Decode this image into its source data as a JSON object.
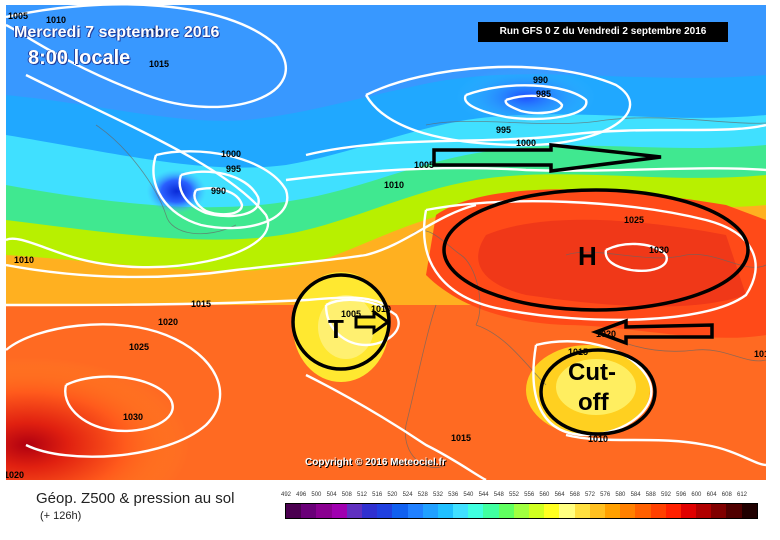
{
  "header": {
    "date_line": "Mercredi 7 septembre 2016",
    "time_line": "8:00 locale",
    "run_info": "Run GFS 0 Z du Vendredi 2 septembre 2016",
    "copyright": "Copyright © 2016 Meteociel.fr"
  },
  "legend": {
    "title": "Géop. Z500 & pression au sol",
    "subtitle": "(+ 126h)",
    "scale_values": [
      "492",
      "496",
      "500",
      "504",
      "508",
      "512",
      "516",
      "520",
      "524",
      "528",
      "532",
      "536",
      "540",
      "544",
      "548",
      "552",
      "556",
      "560",
      "564",
      "568",
      "572",
      "576",
      "580",
      "584",
      "588",
      "592",
      "596",
      "600",
      "604",
      "608",
      "612"
    ],
    "scale_colors": [
      "#4b0050",
      "#6a0078",
      "#8a0090",
      "#a000b0",
      "#6030c0",
      "#3030d0",
      "#2040e0",
      "#1060f0",
      "#2080ff",
      "#20a0ff",
      "#20c0ff",
      "#40e0ff",
      "#40ffe0",
      "#40ffa0",
      "#60ff60",
      "#a0ff40",
      "#d0ff20",
      "#ffff20",
      "#ffff80",
      "#ffe040",
      "#ffc020",
      "#ffa000",
      "#ff8000",
      "#ff6000",
      "#ff4000",
      "#ff2000",
      "#e00000",
      "#b00000",
      "#800000",
      "#500000",
      "#200000"
    ]
  },
  "annotations": {
    "high": "H",
    "low": "T",
    "cut_off_line1": "Cut-",
    "cut_off_line2": "off"
  },
  "isobar_labels": [
    "1005",
    "1010",
    "1020",
    "1015",
    "990",
    "985",
    "995",
    "1000",
    "1000",
    "995",
    "990",
    "1005",
    "1010",
    "1025",
    "1030",
    "1010",
    "1015",
    "1020",
    "1025",
    "1030",
    "1020",
    "1005",
    "1010",
    "1020",
    "1015",
    "1015",
    "1010",
    "1010"
  ],
  "colors": {
    "cold": "#2a5cff",
    "cyan": "#40e8ff",
    "warm": "#ff4a1c",
    "annotation": "#000000"
  }
}
